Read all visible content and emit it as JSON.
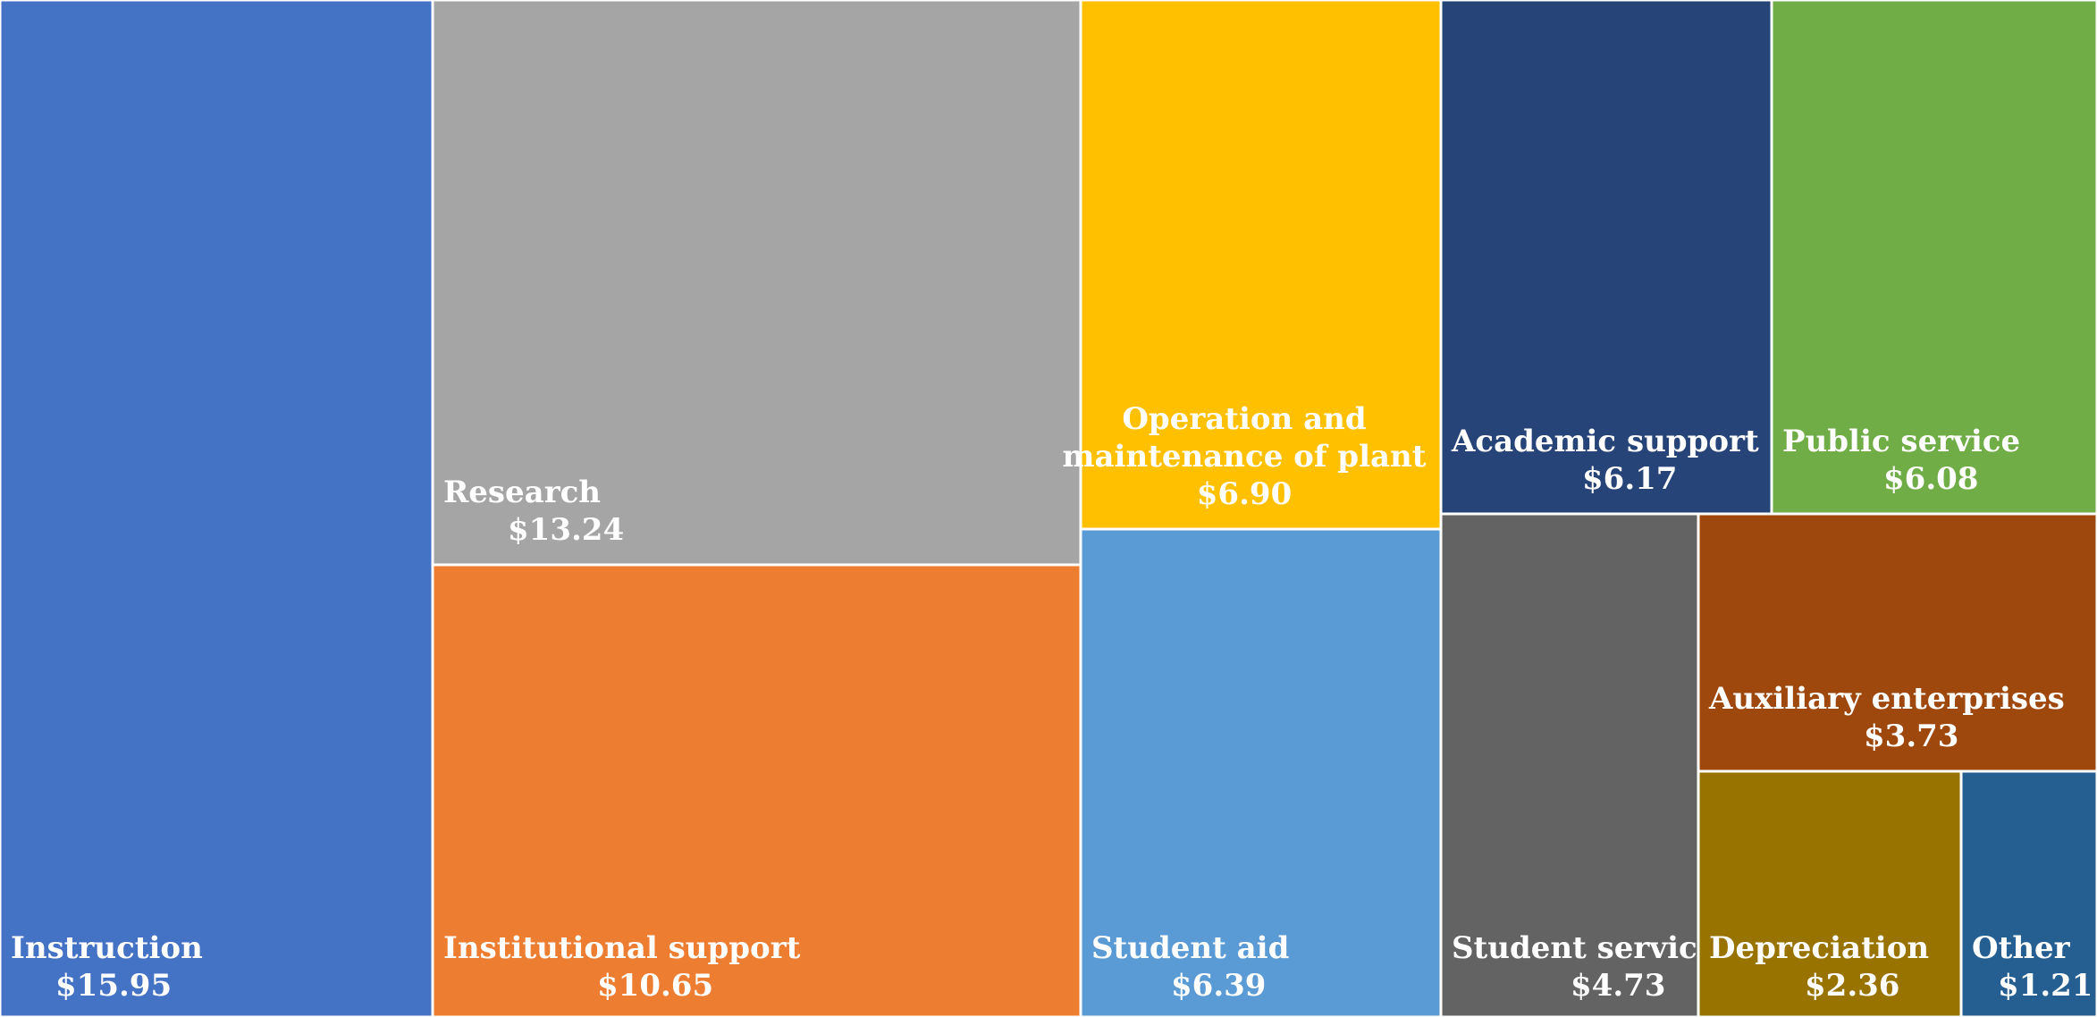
{
  "chart_data": {
    "type": "treemap",
    "title": "",
    "items": [
      {
        "label": "Instruction",
        "value": 15.95,
        "value_label": "$15.95",
        "color": "#4472C4"
      },
      {
        "label": "Research",
        "value": 13.24,
        "value_label": "$13.24",
        "color": "#A5A5A5"
      },
      {
        "label": "Institutional support",
        "value": 10.65,
        "value_label": "$10.65",
        "color": "#ED7D31"
      },
      {
        "label": "Operation and maintenance of plant",
        "value": 6.9,
        "value_label": "$6.90",
        "color": "#FFC000"
      },
      {
        "label": "Student aid",
        "value": 6.39,
        "value_label": "$6.39",
        "color": "#5B9BD5"
      },
      {
        "label": "Academic support",
        "value": 6.17,
        "value_label": "$6.17",
        "color": "#264478"
      },
      {
        "label": "Public service",
        "value": 6.08,
        "value_label": "$6.08",
        "color": "#70AD47"
      },
      {
        "label": "Student services",
        "value": 4.73,
        "value_label": "$4.73",
        "color": "#636363"
      },
      {
        "label": "Auxiliary enterprises",
        "value": 3.73,
        "value_label": "$3.73",
        "color": "#9E480E"
      },
      {
        "label": "Depreciation",
        "value": 2.36,
        "value_label": "$2.36",
        "color": "#997300"
      },
      {
        "label": "Other",
        "value": 1.21,
        "value_label": "$1.21",
        "color": "#255E91"
      }
    ]
  }
}
